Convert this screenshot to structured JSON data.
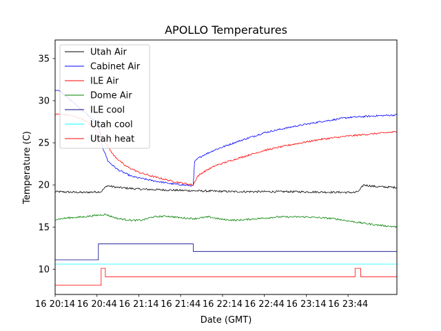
{
  "chart_data": {
    "type": "line",
    "title": "APOLLO Temperatures",
    "xlabel": "Date (GMT)",
    "ylabel": "Temperature (C)",
    "xlim": [
      0,
      245
    ],
    "ylim": [
      7,
      37.2
    ],
    "xticks": [
      {
        "value": 0,
        "label": "16 20:14"
      },
      {
        "value": 30,
        "label": "16 20:44"
      },
      {
        "value": 60,
        "label": "16 21:14"
      },
      {
        "value": 90,
        "label": "16 21:44"
      },
      {
        "value": 120,
        "label": "16 22:14"
      },
      {
        "value": 150,
        "label": "16 22:44"
      },
      {
        "value": 180,
        "label": "16 23:14"
      },
      {
        "value": 210,
        "label": "16 23:44"
      }
    ],
    "yticks": [
      10,
      15,
      20,
      25,
      30,
      35
    ],
    "legend_position": "top-left",
    "series": [
      {
        "name": "Utah Air",
        "color": "#000000",
        "style": "line",
        "noise": 0.12,
        "points": [
          [
            0,
            19.2
          ],
          [
            20,
            19.1
          ],
          [
            33,
            19.2
          ],
          [
            37,
            19.9
          ],
          [
            45,
            19.7
          ],
          [
            60,
            19.5
          ],
          [
            80,
            19.4
          ],
          [
            100,
            19.3
          ],
          [
            130,
            19.2
          ],
          [
            170,
            19.2
          ],
          [
            215,
            19.1
          ],
          [
            218,
            19.3
          ],
          [
            221,
            20.0
          ],
          [
            230,
            19.8
          ],
          [
            245,
            19.7
          ]
        ]
      },
      {
        "name": "Cabinet Air",
        "color": "#0000ff",
        "style": "line",
        "noise": 0.1,
        "points": [
          [
            0,
            31.3
          ],
          [
            4,
            31.1
          ],
          [
            10,
            30.2
          ],
          [
            20,
            28.8
          ],
          [
            28,
            27.6
          ],
          [
            32,
            26.5
          ],
          [
            34,
            24.5
          ],
          [
            38,
            22.8
          ],
          [
            45,
            21.8
          ],
          [
            55,
            21.0
          ],
          [
            70,
            20.5
          ],
          [
            85,
            20.1
          ],
          [
            99,
            19.9
          ],
          [
            100,
            22.7
          ],
          [
            102,
            23.1
          ],
          [
            106,
            23.5
          ],
          [
            115,
            24.2
          ],
          [
            130,
            25.1
          ],
          [
            150,
            26.2
          ],
          [
            170,
            26.9
          ],
          [
            190,
            27.5
          ],
          [
            210,
            28.0
          ],
          [
            230,
            28.2
          ],
          [
            245,
            28.3
          ]
        ]
      },
      {
        "name": "ILE Air",
        "color": "#ff0000",
        "style": "line",
        "noise": 0.1,
        "points": [
          [
            0,
            28.4
          ],
          [
            10,
            28.3
          ],
          [
            20,
            27.8
          ],
          [
            30,
            26.5
          ],
          [
            36,
            25.0
          ],
          [
            42,
            23.5
          ],
          [
            50,
            22.3
          ],
          [
            60,
            21.5
          ],
          [
            70,
            21.0
          ],
          [
            85,
            20.4
          ],
          [
            99,
            20.0
          ],
          [
            102,
            21.0
          ],
          [
            106,
            21.5
          ],
          [
            115,
            22.3
          ],
          [
            130,
            23.1
          ],
          [
            150,
            24.1
          ],
          [
            170,
            24.8
          ],
          [
            190,
            25.4
          ],
          [
            210,
            25.8
          ],
          [
            230,
            26.1
          ],
          [
            245,
            26.3
          ]
        ]
      },
      {
        "name": "Dome Air",
        "color": "#008000",
        "style": "line",
        "noise": 0.1,
        "points": [
          [
            0,
            15.9
          ],
          [
            10,
            16.1
          ],
          [
            20,
            16.2
          ],
          [
            30,
            16.4
          ],
          [
            36,
            16.5
          ],
          [
            45,
            16.0
          ],
          [
            55,
            15.8
          ],
          [
            62,
            15.8
          ],
          [
            70,
            16.2
          ],
          [
            80,
            16.3
          ],
          [
            90,
            16.1
          ],
          [
            100,
            16.0
          ],
          [
            110,
            16.2
          ],
          [
            120,
            15.9
          ],
          [
            130,
            15.8
          ],
          [
            145,
            16.0
          ],
          [
            160,
            16.2
          ],
          [
            180,
            16.2
          ],
          [
            200,
            16.0
          ],
          [
            215,
            15.6
          ],
          [
            228,
            15.3
          ],
          [
            245,
            15.0
          ]
        ]
      },
      {
        "name": "ILE cool",
        "color": "#00008b",
        "style": "step",
        "points": [
          [
            0,
            11.1
          ],
          [
            31,
            11.1
          ],
          [
            31,
            13.0
          ],
          [
            99,
            13.0
          ],
          [
            99,
            12.1
          ],
          [
            245,
            12.1
          ]
        ]
      },
      {
        "name": "Utah cool",
        "color": "#00ffff",
        "style": "step",
        "points": [
          [
            0,
            10.6
          ],
          [
            245,
            10.6
          ]
        ]
      },
      {
        "name": "Utah heat",
        "color": "#ff0000",
        "style": "step",
        "points": [
          [
            0,
            8.1
          ],
          [
            33,
            8.1
          ],
          [
            33,
            10.1
          ],
          [
            36,
            10.1
          ],
          [
            36,
            9.1
          ],
          [
            215,
            9.1
          ],
          [
            215,
            10.1
          ],
          [
            219,
            10.1
          ],
          [
            219,
            9.1
          ],
          [
            245,
            9.1
          ]
        ]
      }
    ]
  }
}
